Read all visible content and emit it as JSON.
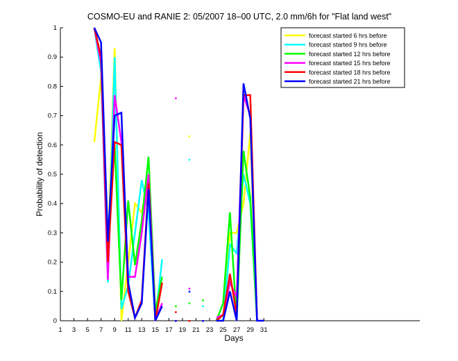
{
  "chart_data": {
    "type": "line",
    "title": "COSMO-EU and RANIE 2: 05/2007 18–00 UTC, 2.0 mm/6h for \"Flat land west\"",
    "xlabel": "Days",
    "ylabel": "Probability of detection",
    "xlim": [
      1,
      54
    ],
    "ylim": [
      0,
      1
    ],
    "xticks": [
      1,
      3,
      5,
      7,
      9,
      11,
      13,
      15,
      17,
      19,
      21,
      23,
      25,
      27,
      29,
      31
    ],
    "yticks": [
      0,
      0.1,
      0.2,
      0.3,
      0.4,
      0.5,
      0.6,
      0.7,
      0.8,
      0.9,
      1
    ],
    "ytick_labels": [
      "0",
      "0.1",
      "0.2",
      "0.3",
      "0.4",
      "0.5",
      "0.6",
      "0.7",
      "0.8",
      "0.9",
      "1"
    ],
    "grid": false,
    "legend_position": "top-right",
    "x": [
      6,
      7,
      8,
      9,
      10,
      11,
      12,
      13,
      14,
      15,
      16,
      17,
      18,
      19,
      20,
      21,
      22,
      23,
      24,
      25,
      26,
      27,
      28,
      29,
      30,
      31
    ],
    "series": [
      {
        "name": "forecast started 6 hrs before",
        "color": "#ffff00",
        "values": [
          0.61,
          0.83,
          0.22,
          0.93,
          0.0,
          0.2,
          0.4,
          0.37,
          0.48,
          0.0,
          0.13,
          null,
          0.05,
          null,
          0.63,
          null,
          null,
          null,
          0.0,
          0.0,
          0.3,
          0.3,
          0.4,
          0.64,
          0.0,
          null
        ]
      },
      {
        "name": "forecast started 9 hrs before",
        "color": "#00ffff",
        "values": [
          1.0,
          0.85,
          0.13,
          0.9,
          0.04,
          0.12,
          0.3,
          0.48,
          0.37,
          0.0,
          0.21,
          null,
          null,
          null,
          0.55,
          null,
          0.05,
          null,
          null,
          0.0,
          0.26,
          0.23,
          0.5,
          0.4,
          0.0,
          null
        ]
      },
      {
        "name": "forecast started 12 hrs before",
        "color": "#00ff00",
        "values": [
          1.0,
          0.9,
          0.29,
          0.6,
          0.07,
          0.41,
          0.19,
          0.34,
          0.56,
          0.03,
          0.15,
          null,
          0.05,
          null,
          0.06,
          null,
          0.07,
          null,
          0.0,
          0.06,
          0.37,
          0.0,
          0.58,
          0.42,
          0.0,
          null
        ]
      },
      {
        "name": "forecast started 15 hrs before",
        "color": "#ff00ff",
        "values": [
          1.0,
          0.88,
          0.14,
          0.77,
          0.61,
          0.15,
          0.15,
          0.3,
          0.5,
          0.0,
          0.06,
          null,
          0.76,
          null,
          0.11,
          null,
          null,
          null,
          0.01,
          0.02,
          0.13,
          0.08,
          0.77,
          0.7,
          0.0,
          null
        ]
      },
      {
        "name": "forecast started 18 hrs before",
        "color": "#ff0000",
        "values": [
          1.0,
          0.9,
          0.2,
          0.61,
          0.6,
          0.1,
          0.01,
          0.07,
          0.47,
          0.0,
          0.13,
          null,
          0.03,
          null,
          0.0,
          null,
          null,
          null,
          0.0,
          0.02,
          0.16,
          0.02,
          0.77,
          0.77,
          0.0,
          null
        ]
      },
      {
        "name": "forecast started 21 hrs before",
        "color": "#0000ff",
        "values": [
          1.0,
          0.95,
          0.27,
          0.7,
          0.71,
          0.13,
          0.01,
          0.06,
          0.45,
          0.0,
          0.05,
          null,
          0.0,
          null,
          0.1,
          null,
          0.0,
          null,
          0.0,
          0.0,
          0.1,
          0.0,
          0.81,
          0.69,
          0.0,
          0.0
        ]
      }
    ]
  }
}
